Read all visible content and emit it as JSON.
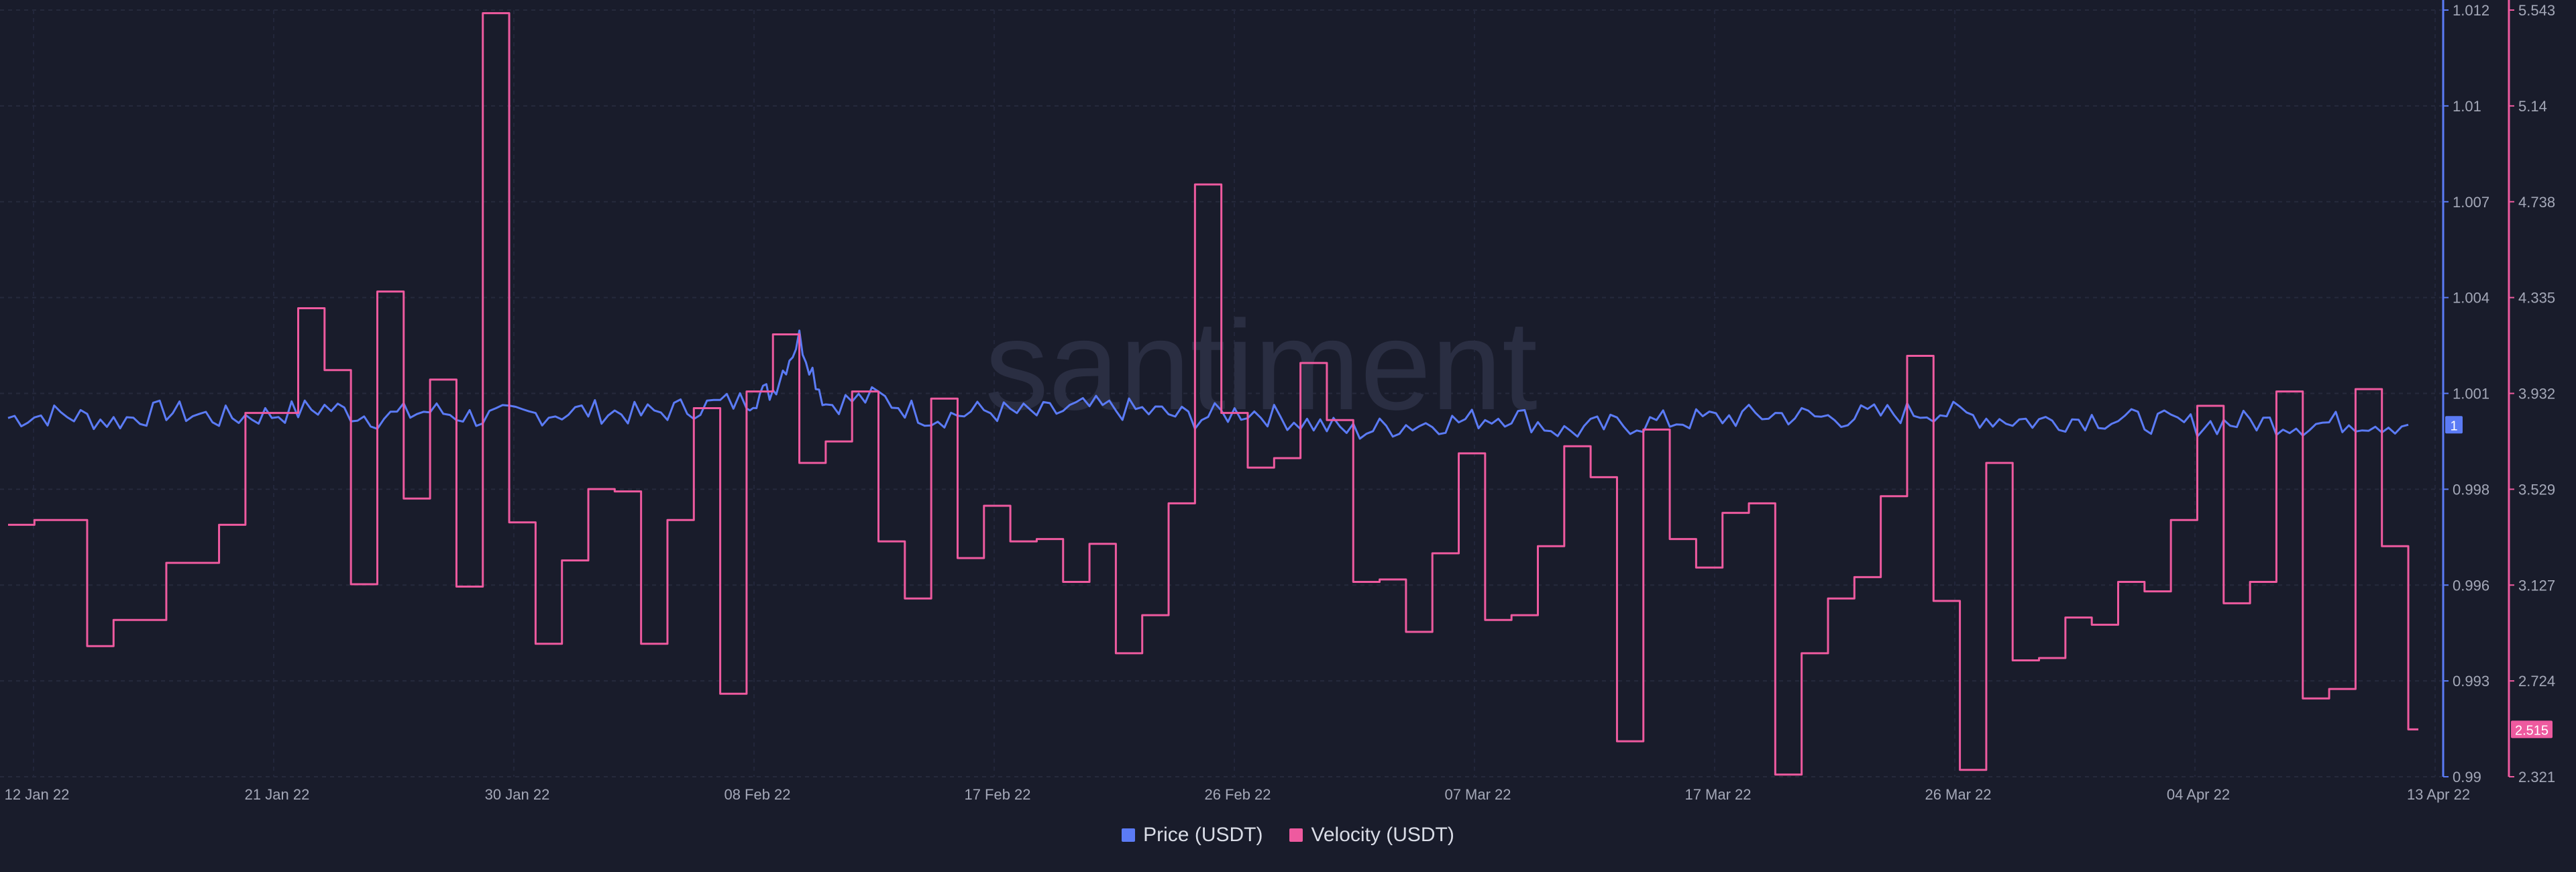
{
  "chart_data": {
    "type": "line",
    "watermark": "santiment",
    "x_ticks": [
      "12 Jan 22",
      "21 Jan 22",
      "30 Jan 22",
      "08 Feb 22",
      "17 Feb 22",
      "26 Feb 22",
      "07 Mar 22",
      "17 Mar 22",
      "26 Mar 22",
      "04 Apr 22",
      "13 Apr 22"
    ],
    "x_range": [
      "2022-01-12",
      "2022-04-13"
    ],
    "y_left": {
      "label": "",
      "ticks": [],
      "grid": true
    },
    "y_price": {
      "ticks": [
        "1.012",
        "1.01",
        "1.007",
        "1.004",
        "1.001",
        "0.998",
        "0.996",
        "0.993",
        "0.99"
      ],
      "ylim": [
        0.99,
        1.012
      ],
      "color": "#5b7bf5"
    },
    "y_velocity": {
      "ticks": [
        "5.543",
        "5.14",
        "4.738",
        "4.335",
        "3.932",
        "3.529",
        "3.127",
        "2.724",
        "2.321"
      ],
      "ylim": [
        2.321,
        5.543
      ],
      "color": "#ee5a9f"
    },
    "last_price_label": "1",
    "last_velocity_label": "2.515",
    "legend": {
      "position": "bottom-center"
    },
    "series": [
      {
        "name": "Price (USDT)",
        "color": "#5b7bf5",
        "axis": "y_price",
        "points": [
          [
            "2022-01-12",
            1.0003
          ],
          [
            "2022-01-14",
            1.0004
          ],
          [
            "2022-01-16",
            1.0002
          ],
          [
            "2022-01-18",
            1.0005
          ],
          [
            "2022-01-20",
            1.0003
          ],
          [
            "2022-01-22",
            1.0004
          ],
          [
            "2022-01-24",
            1.0006
          ],
          [
            "2022-01-26",
            1.0003
          ],
          [
            "2022-01-28",
            1.0005
          ],
          [
            "2022-01-30",
            1.0003
          ],
          [
            "2022-02-01",
            1.0004
          ],
          [
            "2022-02-03",
            1.0005
          ],
          [
            "2022-02-05",
            1.0004
          ],
          [
            "2022-02-07",
            1.0006
          ],
          [
            "2022-02-09",
            1.0008
          ],
          [
            "2022-02-10",
            1.0011
          ],
          [
            "2022-02-11",
            1.0026
          ],
          [
            "2022-02-12",
            1.0007
          ],
          [
            "2022-02-14",
            1.0009
          ],
          [
            "2022-02-16",
            1.0003
          ],
          [
            "2022-02-18",
            1.0005
          ],
          [
            "2022-02-20",
            1.0004
          ],
          [
            "2022-02-22",
            1.0006
          ],
          [
            "2022-02-24",
            1.0005
          ],
          [
            "2022-02-26",
            1.0003
          ],
          [
            "2022-02-28",
            1.0005
          ],
          [
            "2022-03-02",
            1.0002
          ],
          [
            "2022-03-04",
            0.9999
          ],
          [
            "2022-03-06",
            1.0001
          ],
          [
            "2022-03-08",
            1.0002
          ],
          [
            "2022-03-10",
            1.0004
          ],
          [
            "2022-03-12",
            0.9999
          ],
          [
            "2022-03-14",
            1.0001
          ],
          [
            "2022-03-16",
            1.0002
          ],
          [
            "2022-03-18",
            1.0003
          ],
          [
            "2022-03-20",
            1.0004
          ],
          [
            "2022-03-22",
            1.0003
          ],
          [
            "2022-03-24",
            1.0004
          ],
          [
            "2022-03-26",
            1.0005
          ],
          [
            "2022-03-28",
            1.0003
          ],
          [
            "2022-03-30",
            1.0002
          ],
          [
            "2022-04-01",
            1.0003
          ],
          [
            "2022-04-03",
            1.0002
          ],
          [
            "2022-04-05",
            1.0001
          ],
          [
            "2022-04-07",
            1.0002
          ],
          [
            "2022-04-09",
            1.0001
          ],
          [
            "2022-04-11",
            1.0002
          ],
          [
            "2022-04-13",
            1.0001
          ]
        ]
      },
      {
        "name": "Velocity (USDT)",
        "color": "#ee5a9f",
        "axis": "y_velocity",
        "points": [
          [
            "2022-01-12",
            3.38
          ],
          [
            "2022-01-13",
            3.4
          ],
          [
            "2022-01-15",
            2.87
          ],
          [
            "2022-01-16",
            2.98
          ],
          [
            "2022-01-18",
            3.22
          ],
          [
            "2022-01-19",
            3.22
          ],
          [
            "2022-01-20",
            3.38
          ],
          [
            "2022-01-21",
            3.85
          ],
          [
            "2022-01-22",
            3.85
          ],
          [
            "2022-01-23",
            4.29
          ],
          [
            "2022-01-24",
            4.03
          ],
          [
            "2022-01-25",
            3.13
          ],
          [
            "2022-01-26",
            4.36
          ],
          [
            "2022-01-27",
            3.49
          ],
          [
            "2022-01-28",
            3.99
          ],
          [
            "2022-01-29",
            3.12
          ],
          [
            "2022-01-30",
            5.53
          ],
          [
            "2022-01-31",
            3.39
          ],
          [
            "2022-02-01",
            2.88
          ],
          [
            "2022-02-02",
            3.23
          ],
          [
            "2022-02-03",
            3.53
          ],
          [
            "2022-02-04",
            3.52
          ],
          [
            "2022-02-05",
            2.88
          ],
          [
            "2022-02-06",
            3.4
          ],
          [
            "2022-02-07",
            3.87
          ],
          [
            "2022-02-08",
            2.67
          ],
          [
            "2022-02-09",
            3.94
          ],
          [
            "2022-02-10",
            4.18
          ],
          [
            "2022-02-11",
            3.64
          ],
          [
            "2022-02-12",
            3.73
          ],
          [
            "2022-02-13",
            3.94
          ],
          [
            "2022-02-14",
            3.31
          ],
          [
            "2022-02-15",
            3.07
          ],
          [
            "2022-02-16",
            3.91
          ],
          [
            "2022-02-17",
            3.24
          ],
          [
            "2022-02-18",
            3.46
          ],
          [
            "2022-02-19",
            3.31
          ],
          [
            "2022-02-20",
            3.32
          ],
          [
            "2022-02-21",
            3.14
          ],
          [
            "2022-02-22",
            3.3
          ],
          [
            "2022-02-23",
            2.84
          ],
          [
            "2022-02-24",
            3.0
          ],
          [
            "2022-02-25",
            3.47
          ],
          [
            "2022-02-26",
            4.81
          ],
          [
            "2022-02-27",
            3.85
          ],
          [
            "2022-02-28",
            3.62
          ],
          [
            "2022-03-01",
            3.66
          ],
          [
            "2022-03-02",
            4.06
          ],
          [
            "2022-03-03",
            3.82
          ],
          [
            "2022-03-04",
            3.14
          ],
          [
            "2022-03-05",
            3.15
          ],
          [
            "2022-03-06",
            2.93
          ],
          [
            "2022-03-07",
            3.26
          ],
          [
            "2022-03-08",
            3.68
          ],
          [
            "2022-03-09",
            2.98
          ],
          [
            "2022-03-10",
            3.0
          ],
          [
            "2022-03-11",
            3.29
          ],
          [
            "2022-03-12",
            3.71
          ],
          [
            "2022-03-13",
            3.58
          ],
          [
            "2022-03-14",
            2.47
          ],
          [
            "2022-03-15",
            3.78
          ],
          [
            "2022-03-16",
            3.32
          ],
          [
            "2022-03-17",
            3.2
          ],
          [
            "2022-03-18",
            3.43
          ],
          [
            "2022-03-19",
            3.47
          ],
          [
            "2022-03-20",
            2.33
          ],
          [
            "2022-03-21",
            2.84
          ],
          [
            "2022-03-22",
            3.07
          ],
          [
            "2022-03-23",
            3.16
          ],
          [
            "2022-03-24",
            3.5
          ],
          [
            "2022-03-25",
            4.09
          ],
          [
            "2022-03-26",
            3.06
          ],
          [
            "2022-03-27",
            2.35
          ],
          [
            "2022-03-28",
            3.64
          ],
          [
            "2022-03-29",
            2.81
          ],
          [
            "2022-03-30",
            2.82
          ],
          [
            "2022-03-31",
            2.99
          ],
          [
            "2022-04-01",
            2.96
          ],
          [
            "2022-04-02",
            3.14
          ],
          [
            "2022-04-03",
            3.1
          ],
          [
            "2022-04-04",
            3.4
          ],
          [
            "2022-04-05",
            3.88
          ],
          [
            "2022-04-06",
            3.05
          ],
          [
            "2022-04-07",
            3.14
          ],
          [
            "2022-04-08",
            3.94
          ],
          [
            "2022-04-09",
            2.65
          ],
          [
            "2022-04-10",
            2.69
          ],
          [
            "2022-04-11",
            3.95
          ],
          [
            "2022-04-12",
            3.29
          ],
          [
            "2022-04-13",
            2.52
          ]
        ]
      }
    ]
  },
  "legend_items": [
    {
      "label": "Price (USDT)",
      "color": "#5b7bf5"
    },
    {
      "label": "Velocity (USDT)",
      "color": "#ee5a9f"
    }
  ]
}
